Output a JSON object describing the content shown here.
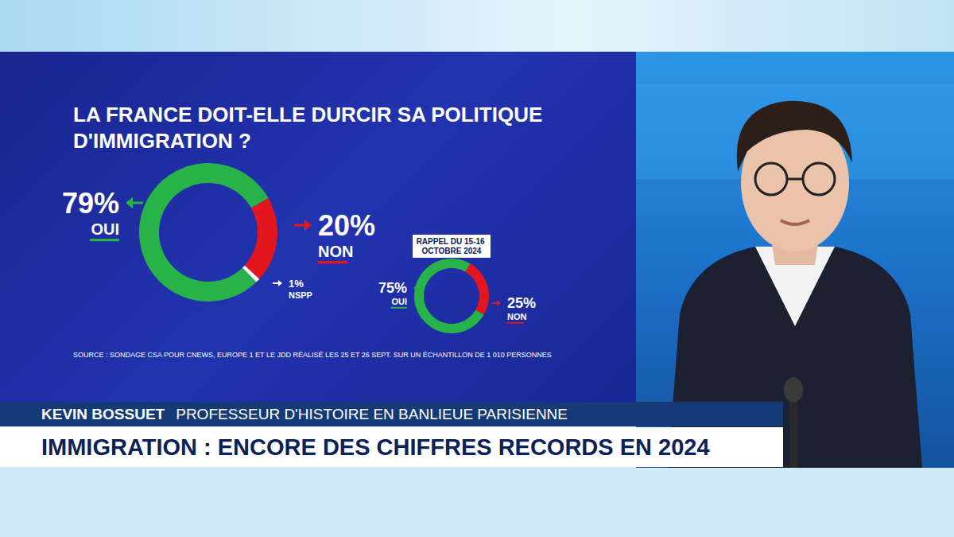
{
  "chart_data": [
    {
      "type": "pie",
      "title": "LA FRANCE DOIT-ELLE DURCIR SA POLITIQUE D'IMMIGRATION ?",
      "categories": [
        "OUI",
        "NON",
        "NSPP"
      ],
      "values": [
        79,
        20,
        1
      ],
      "value_labels": [
        "79%",
        "20%",
        "1%"
      ],
      "colors": [
        "#27b34a",
        "#e3161d",
        "#ffffff"
      ],
      "data_labels": true,
      "annotations": [
        "SOURCE : SONDAGE CSA POUR CNEWS, EUROPE 1 ET LE JDD RÉALISÉ LES 25 ET 26 SEPT. SUR UN ÉCHANTILLON DE 1 010 PERSONNES"
      ]
    },
    {
      "type": "pie",
      "subtitle": "RAPPEL DU 15-16 OCTOBRE 2024",
      "categories": [
        "OUI",
        "NON"
      ],
      "values": [
        75,
        25
      ],
      "value_labels": [
        "75%",
        "25%"
      ],
      "colors": [
        "#27b34a",
        "#e3161d"
      ],
      "data_labels": true
    }
  ],
  "lower_third": {
    "name": "KEVIN BOSSUET",
    "role": "PROFESSEUR D'HISTOIRE EN BANLIEUE PARISIENNE",
    "headline": "IMMIGRATION : ENCORE DES CHIFFRES RECORDS EN 2024"
  }
}
